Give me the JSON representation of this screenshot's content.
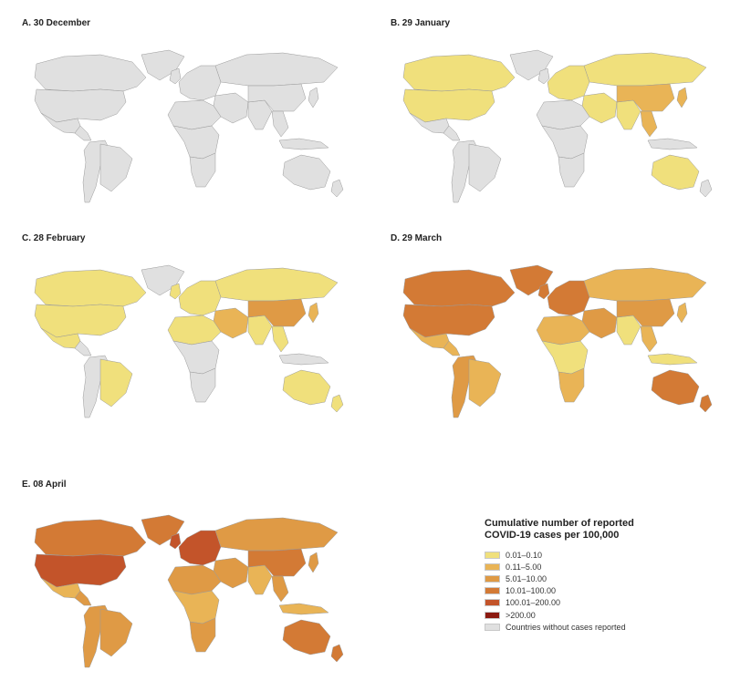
{
  "palette": {
    "no_cases": "#e0e0e0",
    "border": "#ffffff",
    "c1": "#f0e07c",
    "c2": "#e9b456",
    "c3": "#df9a45",
    "c4": "#d37a35",
    "c5": "#c3542a",
    "c6": "#8b1a10"
  },
  "panels": [
    {
      "title": "A. 30 December",
      "colors": {
        "usa": "none",
        "canada": "none",
        "greenland": "none",
        "mexico": "none",
        "central_america": "none",
        "south_america": "none",
        "brazil": "none",
        "europe": "none",
        "uk": "none",
        "russia": "none",
        "middle_east": "none",
        "africa_north": "none",
        "africa_central": "none",
        "africa_south": "none",
        "india": "none",
        "china": "none",
        "se_asia": "none",
        "japan": "none",
        "indonesia": "none",
        "australia": "none",
        "nz": "none"
      }
    },
    {
      "title": "B. 29 January",
      "colors": {
        "usa": "c1",
        "canada": "c1",
        "greenland": "none",
        "mexico": "none",
        "central_america": "none",
        "south_america": "none",
        "brazil": "none",
        "europe": "c1",
        "uk": "none",
        "russia": "c1",
        "middle_east": "c1",
        "africa_north": "none",
        "africa_central": "none",
        "africa_south": "none",
        "india": "c1",
        "china": "c2",
        "se_asia": "c2",
        "japan": "c2",
        "indonesia": "none",
        "australia": "c1",
        "nz": "none"
      }
    },
    {
      "title": "C. 28 February",
      "colors": {
        "usa": "c1",
        "canada": "c1",
        "greenland": "none",
        "mexico": "c1",
        "central_america": "none",
        "south_america": "none",
        "brazil": "c1",
        "europe": "c1",
        "uk": "c1",
        "russia": "c1",
        "middle_east": "c2",
        "africa_north": "c1",
        "africa_central": "none",
        "africa_south": "none",
        "india": "c1",
        "china": "c3",
        "se_asia": "c1",
        "japan": "c2",
        "indonesia": "none",
        "australia": "c1",
        "nz": "c1"
      }
    },
    {
      "title": "D. 29 March",
      "colors": {
        "usa": "c4",
        "canada": "c4",
        "greenland": "c4",
        "mexico": "c2",
        "central_america": "c2",
        "south_america": "c3",
        "brazil": "c2",
        "europe": "c4",
        "uk": "c4",
        "russia": "c2",
        "middle_east": "c3",
        "africa_north": "c2",
        "africa_central": "c1",
        "africa_south": "c2",
        "india": "c1",
        "china": "c3",
        "se_asia": "c2",
        "japan": "c2",
        "indonesia": "c1",
        "australia": "c4",
        "nz": "c4"
      }
    },
    {
      "title": "E. 08 April",
      "colors": {
        "usa": "c5",
        "canada": "c4",
        "greenland": "c4",
        "mexico": "c2",
        "central_america": "c3",
        "south_america": "c3",
        "brazil": "c3",
        "europe": "c5",
        "uk": "c5",
        "russia": "c3",
        "middle_east": "c3",
        "africa_north": "c3",
        "africa_central": "c2",
        "africa_south": "c3",
        "india": "c2",
        "china": "c4",
        "se_asia": "c3",
        "japan": "c3",
        "indonesia": "c2",
        "australia": "c4",
        "nz": "c4"
      }
    }
  ],
  "legend": {
    "title_line1": "Cumulative number of reported",
    "title_line2": "COVID-19 cases per 100,000",
    "items": [
      {
        "label": "0.01–0.10",
        "color": "c1"
      },
      {
        "label": "0.11–5.00",
        "color": "c2"
      },
      {
        "label": "5.01–10.00",
        "color": "c3"
      },
      {
        "label": "10.01–100.00",
        "color": "c4"
      },
      {
        "label": "100.01–200.00",
        "color": "c5"
      },
      {
        "label": ">200.00",
        "color": "c6"
      },
      {
        "label": "Countries without cases reported",
        "color": "no_cases"
      }
    ]
  }
}
